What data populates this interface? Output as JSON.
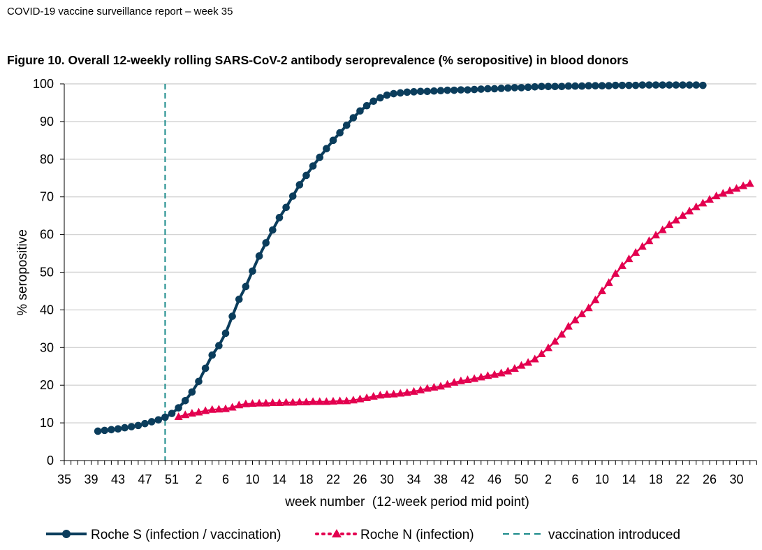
{
  "header": {
    "report_title": "COVID-19 vaccine surveillance report – week 35"
  },
  "figure": {
    "title": "Figure 10. Overall 12-weekly rolling SARS-CoV-2 antibody seroprevalence (% seropositive) in blood donors"
  },
  "colors": {
    "roche_s": "#0b3d5c",
    "roche_n": "#e3004f",
    "vaccination_line": "#1a8a8a",
    "grid": "#d4d4d4"
  },
  "chart_data": {
    "type": "line",
    "title": "Figure 10. Overall 12-weekly rolling SARS-CoV-2 antibody seroprevalence (% seropositive) in blood donors",
    "xlabel": "week number  (12-week period mid point)",
    "ylabel": "% seropositive",
    "ylim": [
      0,
      100
    ],
    "yticks": [
      0,
      10,
      20,
      30,
      40,
      50,
      60,
      70,
      80,
      90,
      100
    ],
    "xticks": [
      "35",
      "39",
      "43",
      "47",
      "51",
      "2",
      "6",
      "10",
      "14",
      "18",
      "22",
      "26",
      "30",
      "34",
      "38",
      "42",
      "46",
      "50",
      "2",
      "6",
      "10",
      "14",
      "18",
      "22",
      "26",
      "30"
    ],
    "x_axis_note": "weeks 35 (2020) through week 30 (2022); 1 week per step",
    "grid": "horizontal",
    "legend_position": "bottom",
    "vaccination_introduced_week": "50",
    "series": [
      {
        "name": "Roche S (infection / vaccination)",
        "marker": "circle",
        "start_week": "40",
        "values": [
          7.8,
          8.0,
          8.2,
          8.4,
          8.7,
          9.0,
          9.3,
          9.8,
          10.3,
          10.8,
          11.5,
          12.5,
          14.0,
          15.9,
          18.2,
          21.0,
          24.5,
          28.0,
          30.5,
          33.8,
          38.3,
          42.8,
          46.2,
          50.3,
          54.3,
          57.8,
          61.2,
          64.5,
          67.2,
          70.2,
          73.2,
          75.7,
          78.2,
          80.5,
          82.8,
          85.0,
          87.0,
          89.0,
          91.0,
          92.8,
          94.2,
          95.4,
          96.3,
          97.0,
          97.4,
          97.6,
          97.8,
          97.9,
          98.0,
          98.0,
          98.1,
          98.2,
          98.3,
          98.3,
          98.4,
          98.4,
          98.5,
          98.6,
          98.7,
          98.7,
          98.8,
          98.9,
          99.0,
          99.0,
          99.1,
          99.2,
          99.3,
          99.3,
          99.3,
          99.3,
          99.4,
          99.4,
          99.4,
          99.5,
          99.5,
          99.5,
          99.5,
          99.6,
          99.6,
          99.6,
          99.6,
          99.7,
          99.7,
          99.7,
          99.7,
          99.7,
          99.7,
          99.7,
          99.7,
          99.7,
          99.6
        ]
      },
      {
        "name": "Roche N (infection)",
        "marker": "triangle",
        "start_week": "52",
        "values": [
          11.6,
          12.1,
          12.5,
          12.8,
          13.2,
          13.5,
          13.6,
          13.7,
          14.1,
          14.7,
          15.0,
          15.1,
          15.2,
          15.2,
          15.3,
          15.3,
          15.4,
          15.4,
          15.5,
          15.5,
          15.6,
          15.6,
          15.6,
          15.7,
          15.8,
          15.8,
          16.0,
          16.3,
          16.6,
          17.0,
          17.3,
          17.5,
          17.6,
          17.8,
          18.0,
          18.3,
          18.7,
          19.1,
          19.4,
          19.7,
          20.2,
          20.7,
          21.1,
          21.4,
          21.7,
          22.1,
          22.5,
          22.8,
          23.2,
          23.7,
          24.4,
          25.2,
          26.0,
          26.9,
          28.3,
          29.9,
          31.6,
          33.5,
          35.6,
          37.3,
          38.9,
          40.5,
          42.6,
          45.0,
          47.2,
          49.6,
          51.7,
          53.5,
          55.2,
          56.8,
          58.3,
          59.8,
          61.2,
          62.6,
          63.8,
          65.0,
          66.2,
          67.3,
          68.3,
          69.3,
          70.2,
          70.9,
          71.6,
          72.2,
          72.9,
          73.5
        ]
      }
    ],
    "legend": {
      "roche_s": "Roche S (infection / vaccination)",
      "roche_n": "Roche N (infection)",
      "vaccination": "vaccination introduced"
    }
  }
}
